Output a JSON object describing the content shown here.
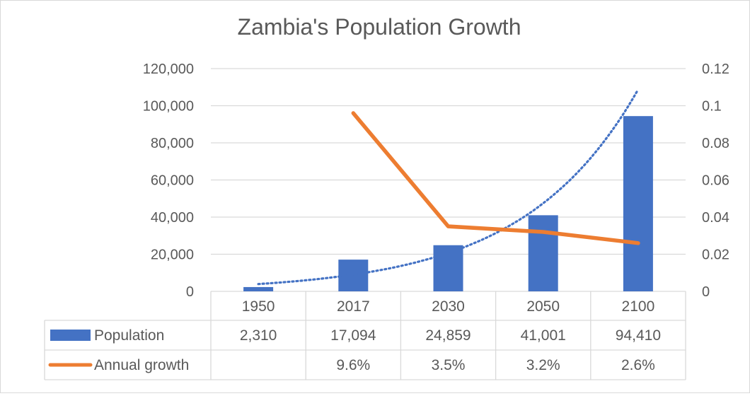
{
  "chart_data": {
    "type": "bar",
    "title": "Zambia's Population Growth",
    "categories": [
      "1950",
      "2017",
      "2030",
      "2050",
      "2100"
    ],
    "series": [
      {
        "name": "Population",
        "kind": "bar",
        "axis": "left",
        "color": "#4472C4",
        "values": [
          2310,
          17094,
          24859,
          41001,
          94410
        ]
      },
      {
        "name": "Annual growth",
        "kind": "line",
        "axis": "right",
        "color": "#ED7D31",
        "values": [
          null,
          0.096,
          0.035,
          0.032,
          0.026
        ]
      }
    ],
    "trendline": {
      "type": "exponential",
      "series": "Population",
      "style": "dotted",
      "color": "#4472C4"
    },
    "y_left": {
      "ylim": [
        0,
        120000
      ],
      "ticks": [
        "0",
        "20,000",
        "40,000",
        "60,000",
        "80,000",
        "100,000",
        "120,000"
      ]
    },
    "y_right": {
      "ylim": [
        0,
        0.12
      ],
      "ticks": [
        "0",
        "0.02",
        "0.04",
        "0.06",
        "0.08",
        "0.1",
        "0.12"
      ]
    },
    "grid": true,
    "data_table": {
      "rows": [
        {
          "label": "Population",
          "cells": [
            "2,310",
            "17,094",
            "24,859",
            "41,001",
            "94,410"
          ]
        },
        {
          "label": "Annual growth",
          "cells": [
            "",
            "9.6%",
            "3.5%",
            "3.2%",
            "2.6%"
          ]
        }
      ]
    }
  }
}
